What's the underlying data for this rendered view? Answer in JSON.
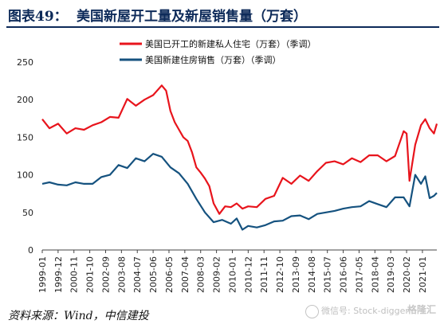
{
  "header": {
    "figure_label": "图表49：",
    "title": "美国新屋开工量及新屋销售量（万套）"
  },
  "footer": {
    "source": "资料来源：Wind，中信建投"
  },
  "watermark": {
    "text": "微信号: Stock-digger",
    "badge": "格隆汇"
  },
  "colors": {
    "starts": "#e8141c",
    "sales": "#15527f"
  },
  "chart_data": {
    "type": "line",
    "title": "",
    "xlabel": "",
    "ylabel": "",
    "ylim": [
      0,
      250
    ],
    "yticks": [
      0,
      50,
      100,
      150,
      200,
      250
    ],
    "xlim": [
      "1999-01",
      "2021-11"
    ],
    "xticks": [
      "1999-01",
      "1999-12",
      "2000-11",
      "2001-10",
      "2002-09",
      "2003-08",
      "2004-07",
      "2005-06",
      "2006-05",
      "2007-04",
      "2008-03",
      "2009-02",
      "2010-01",
      "2010-12",
      "2011-11",
      "2012-10",
      "2013-09",
      "2014-08",
      "2015-07",
      "2016-06",
      "2017-05",
      "2018-04",
      "2019-03",
      "2020-02",
      "2021-01"
    ],
    "legend_position": "top",
    "grid": false,
    "series": [
      {
        "name": "美国已开工的新建私人住宅（万套）（季调）",
        "color_key": "starts",
        "x": [
          "1999-01",
          "1999-06",
          "1999-12",
          "2000-06",
          "2000-12",
          "2001-06",
          "2001-12",
          "2002-06",
          "2002-12",
          "2003-06",
          "2003-12",
          "2004-06",
          "2004-12",
          "2005-06",
          "2005-12",
          "2006-03",
          "2006-06",
          "2006-09",
          "2006-12",
          "2007-03",
          "2007-06",
          "2007-09",
          "2007-12",
          "2008-03",
          "2008-06",
          "2008-09",
          "2008-12",
          "2009-04",
          "2009-08",
          "2009-12",
          "2010-04",
          "2010-08",
          "2010-12",
          "2011-06",
          "2011-12",
          "2012-06",
          "2012-12",
          "2013-06",
          "2013-12",
          "2014-06",
          "2014-12",
          "2015-06",
          "2015-12",
          "2016-06",
          "2016-12",
          "2017-06",
          "2017-12",
          "2018-06",
          "2018-12",
          "2019-06",
          "2019-12",
          "2020-02",
          "2020-04",
          "2020-08",
          "2020-12",
          "2021-03",
          "2021-06",
          "2021-09",
          "2021-11"
        ],
        "y": [
          174,
          162,
          168,
          155,
          162,
          160,
          166,
          170,
          177,
          176,
          201,
          192,
          200,
          206,
          219,
          212,
          185,
          170,
          160,
          150,
          145,
          130,
          110,
          103,
          95,
          85,
          62,
          48,
          58,
          57,
          62,
          55,
          58,
          57,
          68,
          72,
          96,
          88,
          99,
          92,
          105,
          116,
          118,
          114,
          122,
          117,
          126,
          126,
          118,
          125,
          158,
          155,
          92,
          140,
          166,
          174,
          162,
          155,
          168
        ]
      },
      {
        "name": "美国新建住房销售（万套）（季调）",
        "color_key": "sales",
        "x": [
          "1999-01",
          "1999-06",
          "1999-12",
          "2000-06",
          "2000-12",
          "2001-06",
          "2001-12",
          "2002-06",
          "2002-12",
          "2003-06",
          "2003-12",
          "2004-06",
          "2004-12",
          "2005-06",
          "2005-12",
          "2006-06",
          "2006-12",
          "2007-06",
          "2007-12",
          "2008-06",
          "2008-12",
          "2009-06",
          "2009-12",
          "2010-04",
          "2010-08",
          "2010-12",
          "2011-06",
          "2011-12",
          "2012-06",
          "2012-12",
          "2013-06",
          "2013-12",
          "2014-06",
          "2014-12",
          "2015-06",
          "2015-12",
          "2016-06",
          "2016-12",
          "2017-06",
          "2017-12",
          "2018-06",
          "2018-12",
          "2019-06",
          "2019-12",
          "2020-04",
          "2020-08",
          "2020-12",
          "2021-03",
          "2021-06",
          "2021-09",
          "2021-11"
        ],
        "y": [
          88,
          90,
          87,
          86,
          90,
          88,
          88,
          97,
          100,
          113,
          109,
          122,
          118,
          128,
          124,
          110,
          102,
          88,
          68,
          50,
          37,
          40,
          35,
          42,
          27,
          32,
          30,
          33,
          38,
          39,
          45,
          46,
          41,
          48,
          50,
          52,
          55,
          57,
          58,
          65,
          61,
          57,
          70,
          70,
          58,
          100,
          88,
          98,
          69,
          72,
          76
        ]
      }
    ]
  }
}
